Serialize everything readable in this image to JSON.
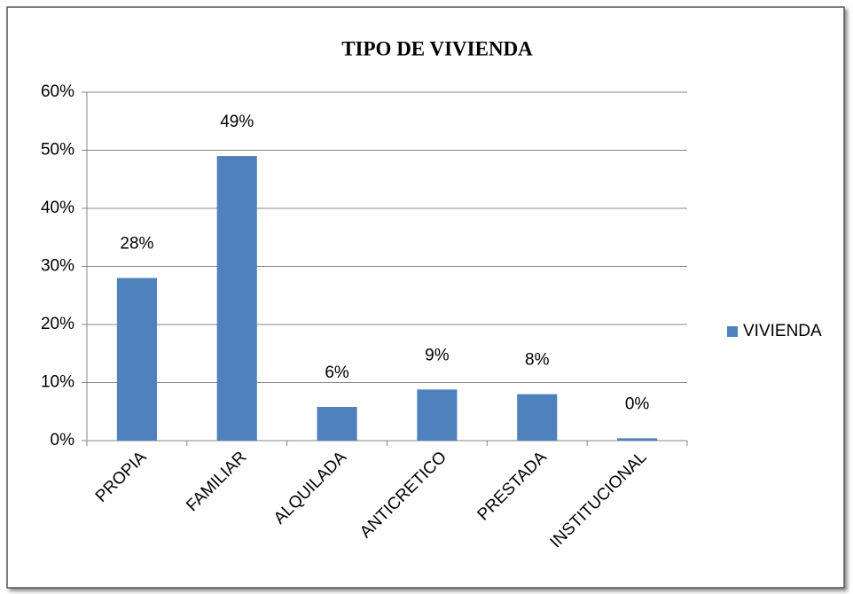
{
  "chart_data": {
    "type": "bar",
    "title": "TIPO DE VIVIENDA",
    "categories": [
      "PROPIA",
      "FAMILIAR",
      "ALQUILADA",
      "ANTICRETICO",
      "PRESTADA",
      "INSTITUCIONAL"
    ],
    "series": [
      {
        "name": "VIVIENDA",
        "color": "#4f81bd",
        "values": [
          28,
          49,
          5.8,
          8.8,
          8,
          0.4
        ],
        "value_labels": [
          "28%",
          "49%",
          "6%",
          "9%",
          "8%",
          "0%"
        ]
      }
    ],
    "ylim": [
      0,
      60
    ],
    "yticks": [
      {
        "value": 0,
        "label": "0%"
      },
      {
        "value": 10,
        "label": "10%"
      },
      {
        "value": 20,
        "label": "20%"
      },
      {
        "value": 30,
        "label": "30%"
      },
      {
        "value": 40,
        "label": "40%"
      },
      {
        "value": 50,
        "label": "50%"
      },
      {
        "value": 60,
        "label": "60%"
      }
    ],
    "grid": true,
    "legend": "right"
  }
}
